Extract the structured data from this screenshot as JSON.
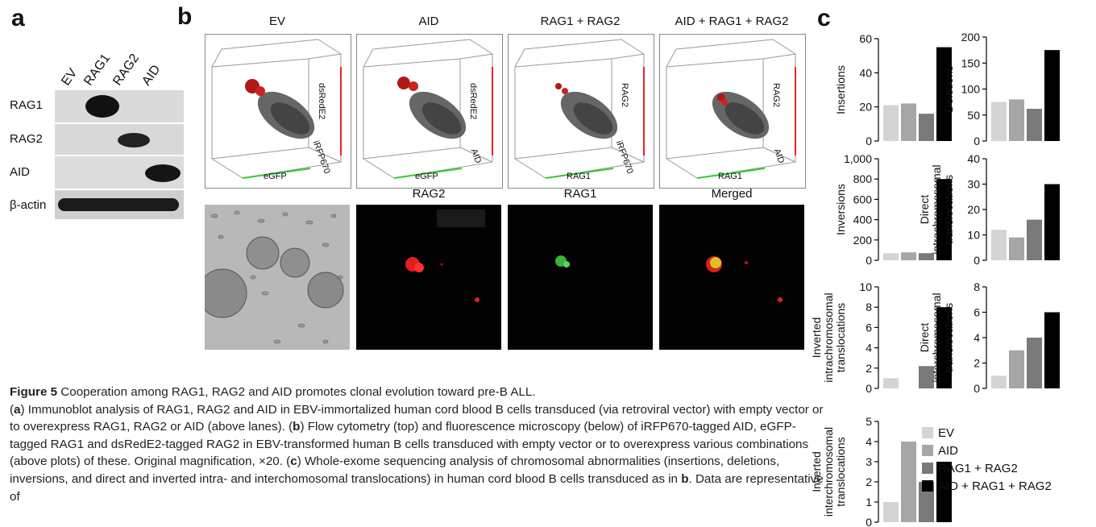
{
  "panel_letters": {
    "a": "a",
    "b": "b",
    "c": "c"
  },
  "blot": {
    "lanes": [
      "EV",
      "RAG1",
      "RAG2",
      "AID"
    ],
    "rows": [
      "RAG1",
      "RAG2",
      "AID",
      "β-actin"
    ]
  },
  "flow": {
    "titles": [
      "EV",
      "AID",
      "RAG1 + RAG2",
      "AID + RAG1 + RAG2"
    ],
    "axes": [
      {
        "x": "eGFP",
        "y": "dsRedE2",
        "z": "iRFP670"
      },
      {
        "x": "eGFP",
        "y": "dsRedE2",
        "z": "AID"
      },
      {
        "x": "RAG1",
        "y": "RAG2",
        "z": "iRFP670"
      },
      {
        "x": "RAG1",
        "y": "RAG2",
        "z": "AID"
      }
    ],
    "micro_titles": [
      "",
      "RAG2",
      "RAG1",
      "Merged"
    ]
  },
  "caption": {
    "label": "Figure 5",
    "title": " Cooperation among RAG1, RAG2 and AID promotes clonal evolution toward pre-B ALL.",
    "line_a_pre": "(",
    "line_a_letter": "a",
    "line_a": ") Immunoblot analysis of RAG1, RAG2 and AID in EBV-immortalized human cord blood B cells transduced (via retroviral vector) with empty vector or to overexpress RAG1, RAG2 or AID (above lanes). (",
    "line_b_letter": "b",
    "line_b": ") Flow cytometry (top) and fluorescence microscopy (below) of iRFP670-tagged AID, eGFP-tagged RAG1 and dsRedE2-tagged RAG2 in EBV-transformed human B cells transduced with empty vector or to overexpress various combinations (above plots) of these. Original magnification, ×20. (",
    "line_c_letter": "c",
    "line_c": ") Whole-exome sequencing analysis of chromosomal abnormalities (insertions, deletions, inversions, and direct and inverted intra- and interchomosomal translocations) in human cord blood B cells transduced as in ",
    "line_c_ref": "b",
    "line_c_end": ". Data are representative of"
  },
  "chart_data": [
    {
      "type": "bar",
      "ylabel": [
        "Insertions"
      ],
      "categories": [
        "EV",
        "AID",
        "RAG1 + RAG2",
        "AID + RAG1 + RAG2"
      ],
      "values": [
        21,
        22,
        16,
        55
      ],
      "ylim": [
        0,
        60
      ],
      "ticks": [
        "0",
        "20",
        "40",
        "60"
      ]
    },
    {
      "type": "bar",
      "ylabel": [
        "Deletions"
      ],
      "categories": [
        "EV",
        "AID",
        "RAG1 + RAG2",
        "AID + RAG1 + RAG2"
      ],
      "values": [
        75,
        80,
        62,
        175
      ],
      "ylim": [
        0,
        200
      ],
      "ticks": [
        "0",
        "50",
        "100",
        "150",
        "200"
      ]
    },
    {
      "type": "bar",
      "ylabel": [
        "Inversions"
      ],
      "categories": [
        "EV",
        "AID",
        "RAG1 + RAG2",
        "AID + RAG1 + RAG2"
      ],
      "values": [
        70,
        78,
        70,
        800
      ],
      "ylim": [
        0,
        1000
      ],
      "ticks": [
        "0",
        "200",
        "400",
        "600",
        "800",
        "1,000"
      ]
    },
    {
      "type": "bar",
      "ylabel": [
        "Direct",
        "intrachromosomal",
        "translocations"
      ],
      "categories": [
        "EV",
        "AID",
        "RAG1 + RAG2",
        "AID + RAG1 + RAG2"
      ],
      "values": [
        12,
        9,
        16,
        30
      ],
      "ylim": [
        0,
        40
      ],
      "ticks": [
        "0",
        "10",
        "20",
        "30",
        "40"
      ]
    },
    {
      "type": "bar",
      "ylabel": [
        "Inverted",
        "intrachromosomal",
        "translocations"
      ],
      "categories": [
        "EV",
        "AID",
        "RAG1 + RAG2",
        "AID + RAG1 + RAG2"
      ],
      "values": [
        1,
        0,
        2.2,
        8
      ],
      "ylim": [
        0,
        10
      ],
      "ticks": [
        "0",
        "2",
        "4",
        "6",
        "8",
        "10"
      ]
    },
    {
      "type": "bar",
      "ylabel": [
        "Direct",
        "interchromosomal",
        "translocations"
      ],
      "categories": [
        "EV",
        "AID",
        "RAG1 + RAG2",
        "AID + RAG1 + RAG2"
      ],
      "values": [
        1,
        3,
        4,
        6
      ],
      "ylim": [
        0,
        8
      ],
      "ticks": [
        "0",
        "2",
        "4",
        "6",
        "8"
      ]
    },
    {
      "type": "bar",
      "ylabel": [
        "Inverted",
        "interchromosomal",
        "translocations"
      ],
      "categories": [
        "EV",
        "AID",
        "RAG1 + RAG2",
        "AID + RAG1 + RAG2"
      ],
      "values": [
        1,
        4,
        2,
        3
      ],
      "ylim": [
        0,
        5
      ],
      "ticks": [
        "0",
        "1",
        "2",
        "3",
        "4",
        "5"
      ]
    }
  ],
  "legend": [
    {
      "label": "EV",
      "color": "#d4d4d4"
    },
    {
      "label": "AID",
      "color": "#a6a6a6"
    },
    {
      "label": "RAG1 + RAG2",
      "color": "#7a7a7a"
    },
    {
      "label": "AID + RAG1 + RAG2",
      "color": "#000000"
    }
  ]
}
